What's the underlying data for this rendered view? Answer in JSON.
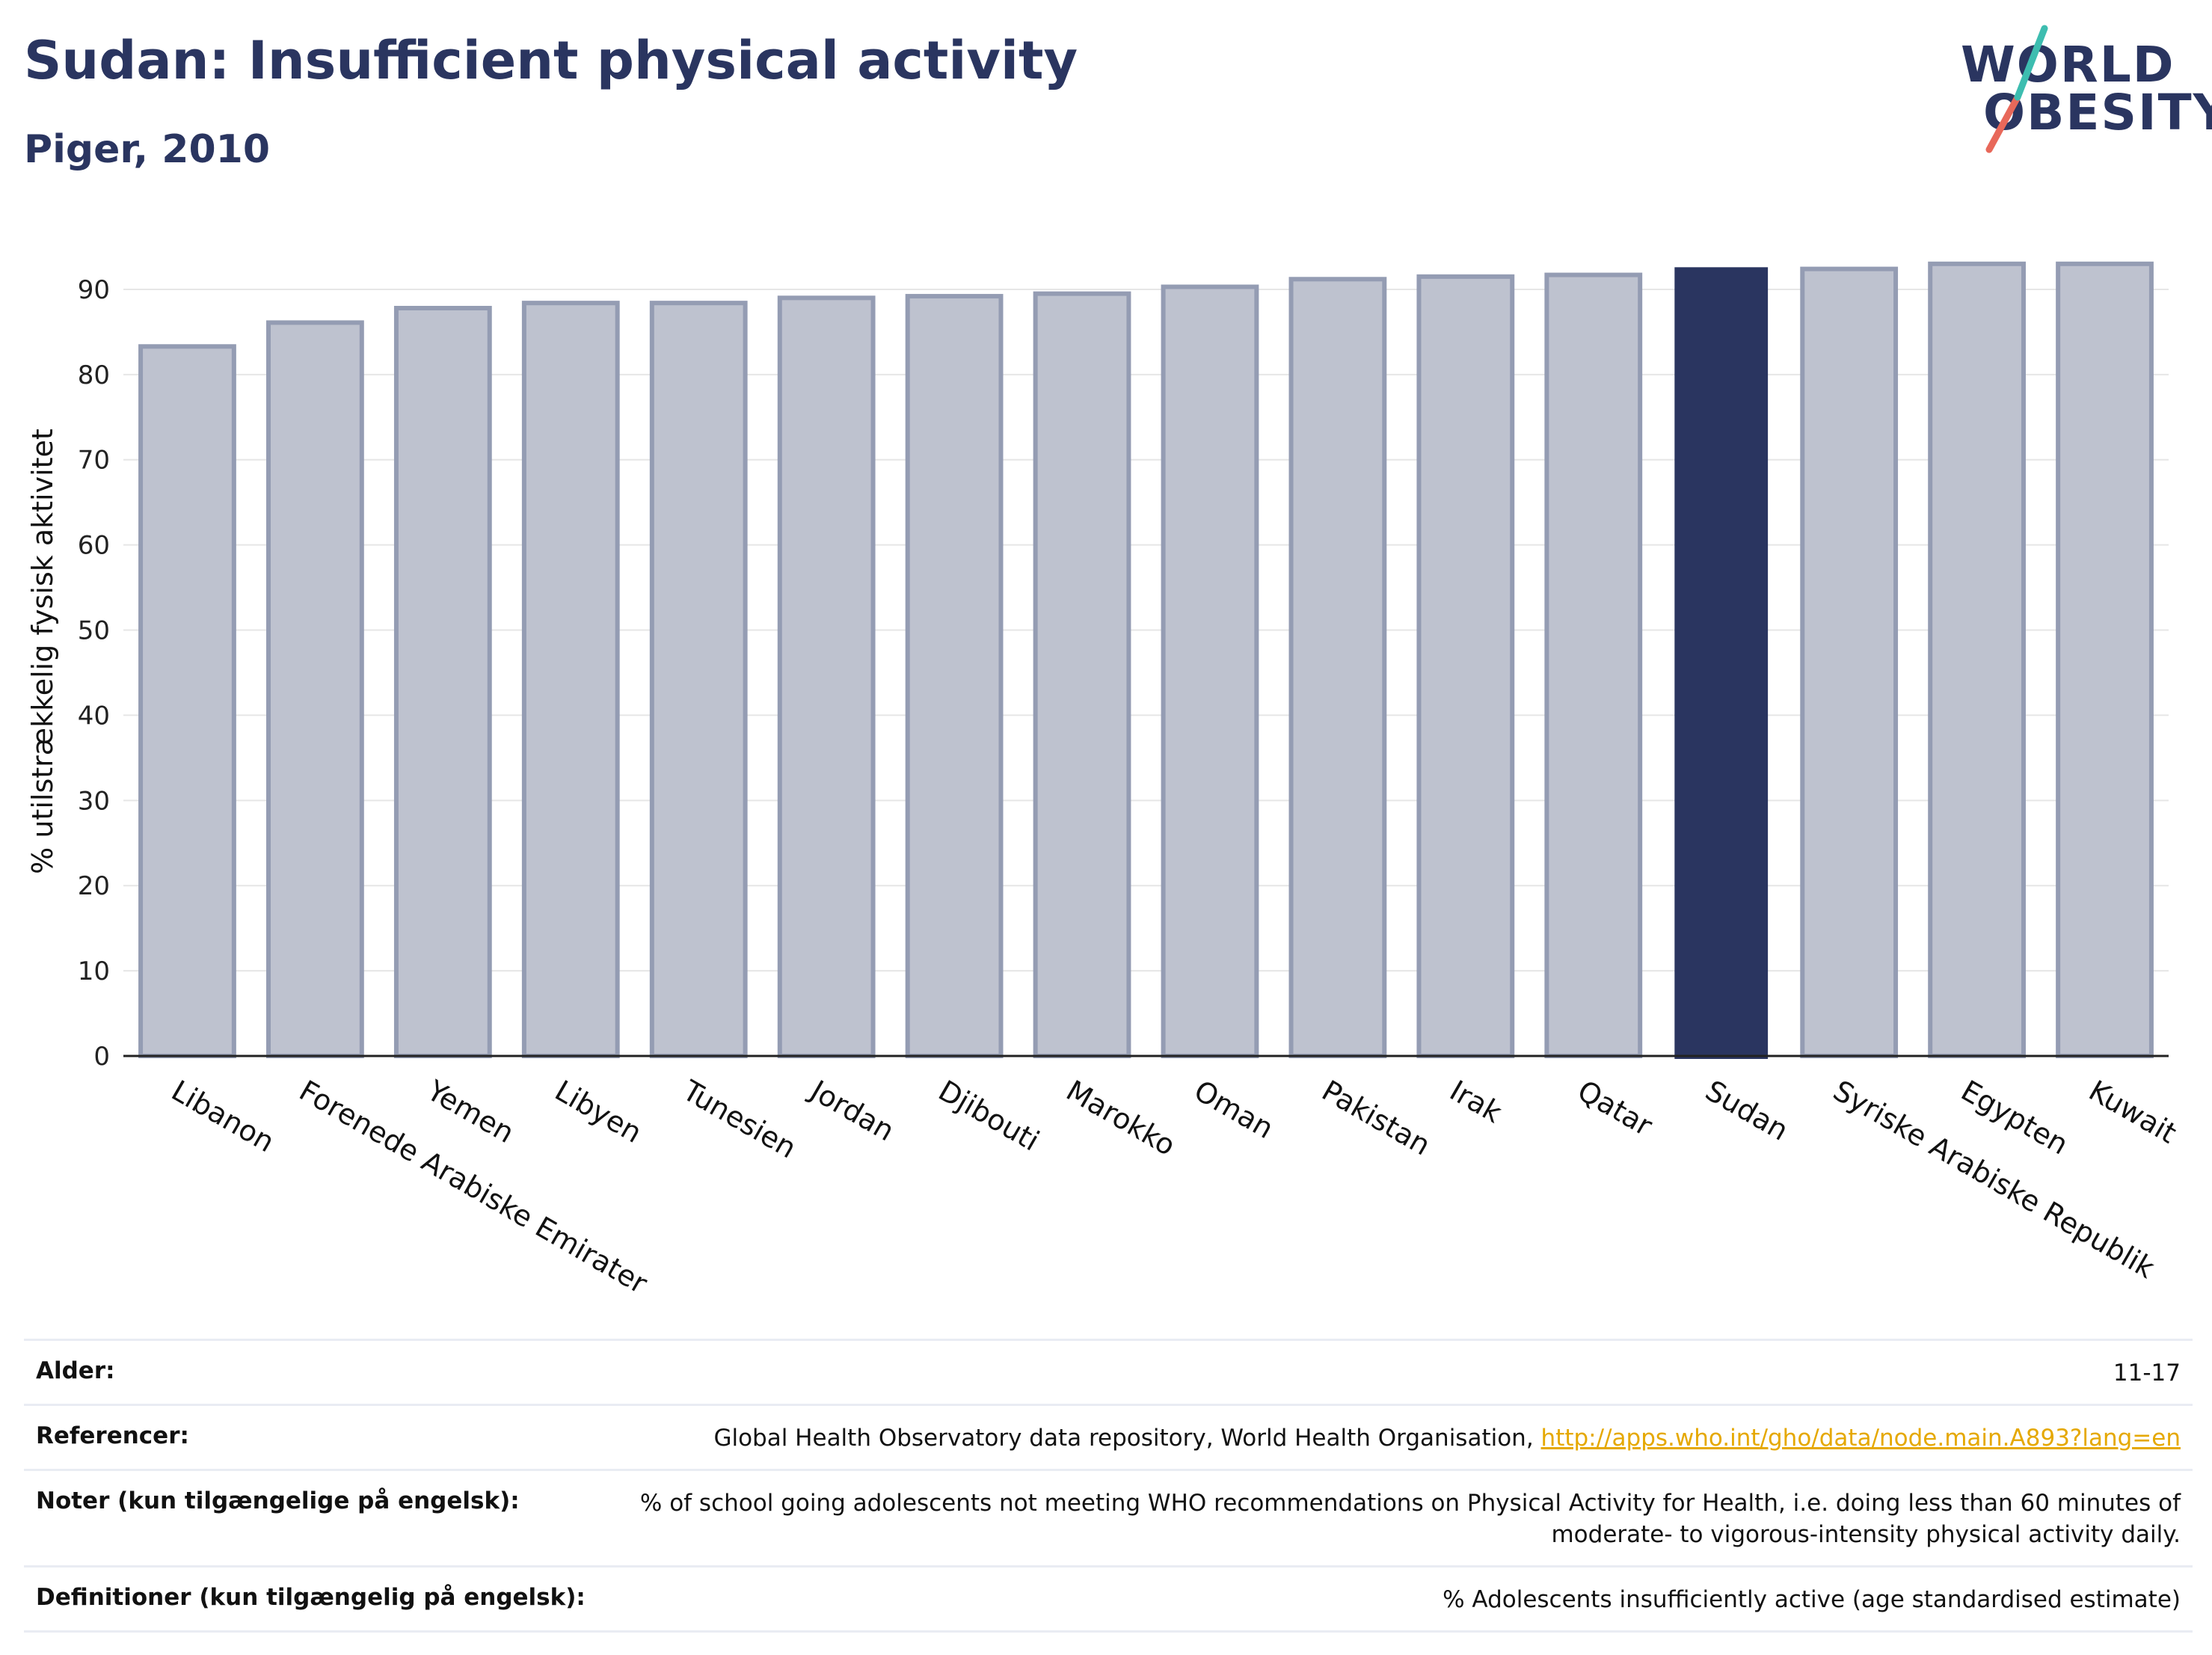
{
  "header": {
    "title": "Sudan: Insufficient physical activity",
    "subtitle": "Piger, 2010"
  },
  "logo": {
    "line1": "WORLD",
    "line2": "OBESITY"
  },
  "colors": {
    "bar": "#bec2cf",
    "bar_border": "#949cb3",
    "highlight": "#2a3560",
    "grid": "#e6e6e6"
  },
  "chart_data": {
    "type": "bar",
    "ylabel": "% utilstrækkelig fysisk aktivitet",
    "ylim": [
      0,
      95
    ],
    "yticks": [
      0,
      10,
      20,
      30,
      40,
      50,
      60,
      70,
      80,
      90
    ],
    "grid": true,
    "highlight": "Sudan",
    "categories": [
      "Libanon",
      "Forenede Arabiske Emirater",
      "Yemen",
      "Libyen",
      "Tunesien",
      "Jordan",
      "Djibouti",
      "Marokko",
      "Oman",
      "Pakistan",
      "Irak",
      "Qatar",
      "Sudan",
      "Syriske Arabiske Republik",
      "Egypten",
      "Kuwait"
    ],
    "values": [
      83.3,
      86.1,
      87.8,
      88.4,
      88.4,
      89.0,
      89.2,
      89.5,
      90.3,
      91.2,
      91.5,
      91.7,
      92.6,
      92.4,
      93.0,
      93.0
    ]
  },
  "footer": {
    "rows": [
      {
        "label": "Alder:",
        "value": "11-17"
      },
      {
        "label": "Referencer:",
        "value": "Global Health Observatory data repository, World Health Organisation, ",
        "link": "http://apps.who.int/gho/data/node.main.A893?lang=en"
      },
      {
        "label": "Noter (kun tilgængelige på engelsk):",
        "value": "% of school going adolescents not meeting WHO recommendations on Physical Activity for Health, i.e. doing less than 60 minutes of moderate- to vigorous-intensity physical activity daily."
      },
      {
        "label": "Definitioner (kun tilgængelig på engelsk):",
        "value": "% Adolescents insufficiently active (age standardised estimate)"
      }
    ]
  }
}
